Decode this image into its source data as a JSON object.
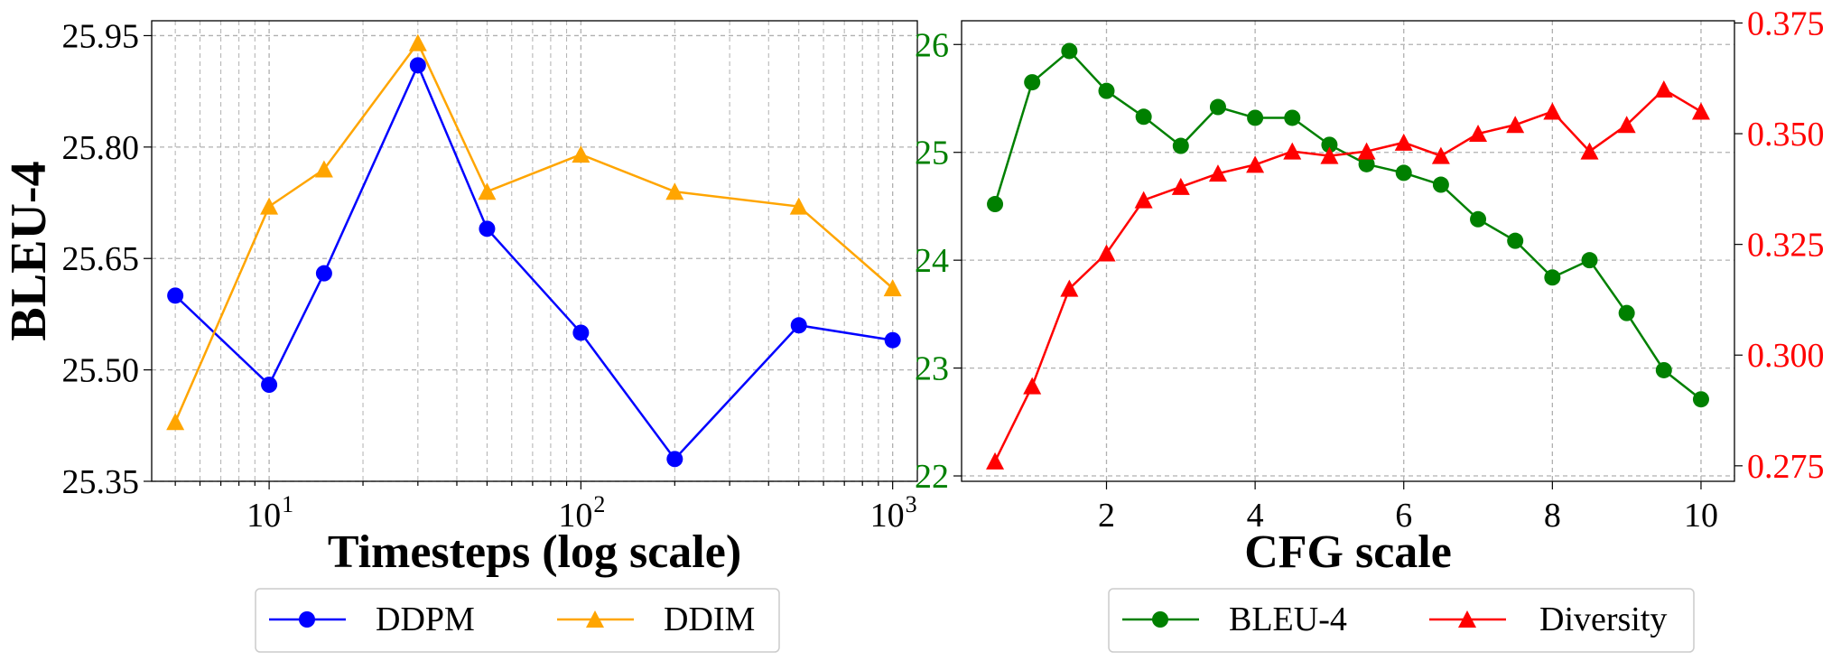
{
  "chart_data": [
    {
      "type": "line",
      "xscale": "log",
      "xlabel": "Timesteps (log scale)",
      "ylabel": "BLEU-4",
      "xlim": [
        4.2,
        1200
      ],
      "ylim": [
        25.35,
        25.97
      ],
      "yticks": [
        25.35,
        25.5,
        25.65,
        25.8,
        25.95
      ],
      "ytick_labels": [
        "25.35",
        "25.50",
        "25.65",
        "25.80",
        "25.95"
      ],
      "xtick_exponents": [
        "1",
        "2",
        "3"
      ],
      "xtick_base": "10",
      "grid": true,
      "legend_position": "below",
      "series": [
        {
          "name": "DDPM",
          "color": "#0000ff",
          "marker": "circle",
          "x": [
            5,
            10,
            15,
            30,
            50,
            100,
            200,
            500,
            1000
          ],
          "values": [
            25.6,
            25.48,
            25.63,
            25.91,
            25.69,
            25.55,
            25.38,
            25.56,
            25.54
          ]
        },
        {
          "name": "DDIM",
          "color": "#ffa500",
          "marker": "triangle",
          "x": [
            5,
            10,
            15,
            30,
            50,
            100,
            200,
            500,
            1000
          ],
          "values": [
            25.43,
            25.72,
            25.77,
            25.94,
            25.74,
            25.79,
            25.74,
            25.72,
            25.61
          ]
        }
      ]
    },
    {
      "type": "line",
      "xlabel": "CFG scale",
      "xlim": [
        0.05,
        10.45
      ],
      "xticks": [
        2,
        4,
        6,
        8,
        10
      ],
      "xtick_labels": [
        "2",
        "4",
        "6",
        "8",
        "10"
      ],
      "ylim_left": [
        21.95,
        26.22
      ],
      "yticks_left": [
        22,
        23,
        24,
        25,
        26
      ],
      "ytick_labels_left": [
        "22",
        "23",
        "24",
        "25",
        "26"
      ],
      "left_axis_color": "#008000",
      "ylim_right": [
        0.2715,
        0.3755
      ],
      "yticks_right": [
        0.275,
        0.3,
        0.325,
        0.35,
        0.375
      ],
      "ytick_labels_right": [
        "0.275",
        "0.300",
        "0.325",
        "0.350",
        "0.375"
      ],
      "right_axis_color": "#ff0000",
      "grid": true,
      "legend_position": "below",
      "series": [
        {
          "name": "BLEU-4",
          "axis": "left",
          "color": "#008000",
          "marker": "circle",
          "x": [
            0.5,
            1.0,
            1.5,
            2.0,
            2.5,
            3.0,
            3.5,
            4.0,
            4.5,
            5.0,
            5.5,
            6.0,
            6.5,
            7.0,
            7.5,
            8.0,
            8.5,
            9.0,
            9.5,
            10.0
          ],
          "values": [
            24.52,
            25.65,
            25.94,
            25.57,
            25.33,
            25.06,
            25.42,
            25.32,
            25.32,
            25.07,
            24.89,
            24.81,
            24.7,
            24.38,
            24.18,
            23.84,
            24.0,
            23.51,
            22.98,
            22.71
          ]
        },
        {
          "name": "Diversity",
          "axis": "right",
          "color": "#ff0000",
          "marker": "triangle",
          "x": [
            0.5,
            1.0,
            1.5,
            2.0,
            2.5,
            3.0,
            3.5,
            4.0,
            4.5,
            5.0,
            5.5,
            6.0,
            6.5,
            7.0,
            7.5,
            8.0,
            8.5,
            9.0,
            9.5,
            10.0
          ],
          "values": [
            0.276,
            0.293,
            0.315,
            0.323,
            0.335,
            0.338,
            0.341,
            0.343,
            0.346,
            0.345,
            0.346,
            0.348,
            0.345,
            0.35,
            0.352,
            0.355,
            0.346,
            0.352,
            0.36,
            0.355
          ]
        }
      ]
    }
  ]
}
